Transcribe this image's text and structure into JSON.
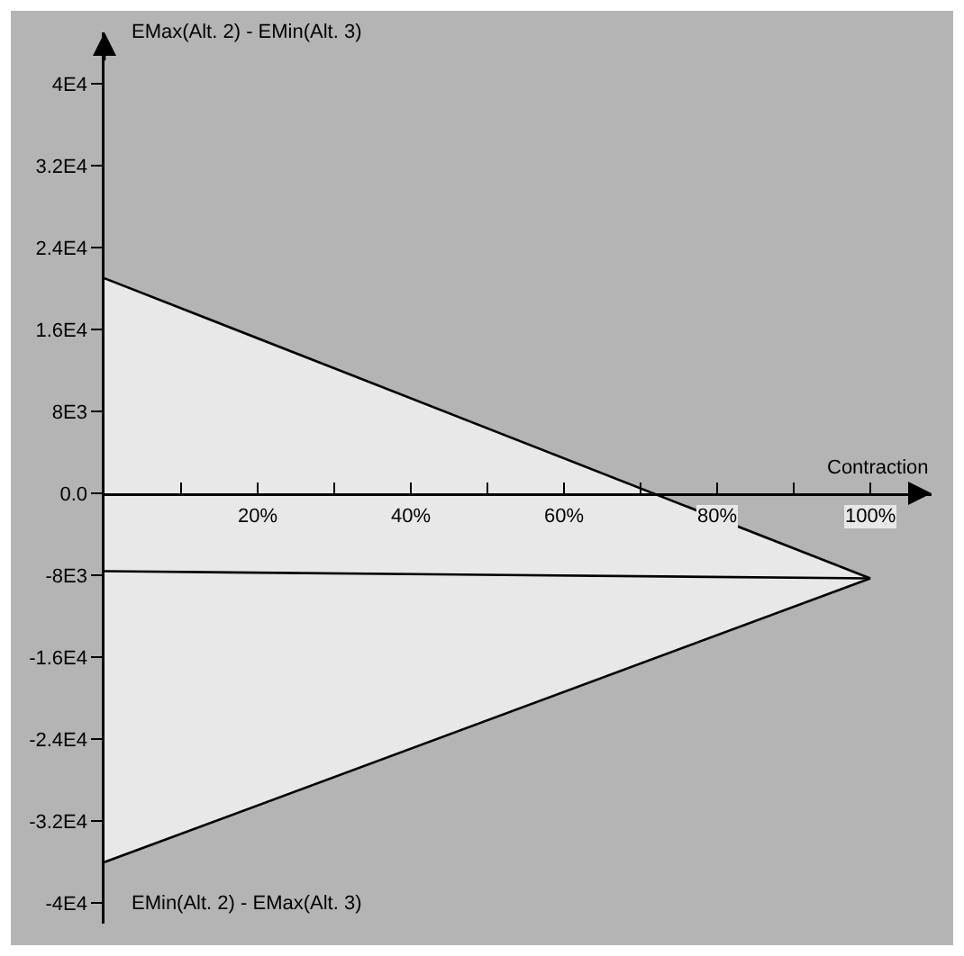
{
  "chart_data": {
    "type": "line",
    "ylabel": "EMax(Alt. 2) - EMin(Alt. 3)",
    "xlabel": "Contraction",
    "annotations": [
      "EMin(Alt. 2) - EMax(Alt. 3)"
    ],
    "x": [
      0,
      100
    ],
    "series": [
      {
        "color": "#000000",
        "values": [
          21000,
          -8300
        ]
      },
      {
        "color": "#000000",
        "values": [
          -7600,
          -8300
        ],
        "lower": [
          -36000,
          -8300
        ],
        "upper": [
          21000,
          -8300
        ]
      },
      {
        "color": "#000000",
        "values": [
          -36000,
          -8300
        ]
      }
    ],
    "xlim": [
      0,
      108
    ],
    "xticks": [
      {
        "value": 10,
        "label": null
      },
      {
        "value": 20,
        "label": "20%"
      },
      {
        "value": 30,
        "label": null
      },
      {
        "value": 40,
        "label": "40%"
      },
      {
        "value": 50,
        "label": null
      },
      {
        "value": 60,
        "label": "60%"
      },
      {
        "value": 70,
        "label": null
      },
      {
        "value": 80,
        "label": "80%"
      },
      {
        "value": 90,
        "label": null
      },
      {
        "value": 100,
        "label": "100%"
      }
    ],
    "ylim": [
      -42000,
      45000
    ],
    "yticks": [
      {
        "value": 40000,
        "label": "4E4"
      },
      {
        "value": 32000,
        "label": "3.2E4"
      },
      {
        "value": 24000,
        "label": "2.4E4"
      },
      {
        "value": 16000,
        "label": "1.6E4"
      },
      {
        "value": 8000,
        "label": "8E3"
      },
      {
        "value": 0,
        "label": "0.0"
      },
      {
        "value": -8000,
        "label": "-8E3"
      },
      {
        "value": -16000,
        "label": "-1.6E4"
      },
      {
        "value": -24000,
        "label": "-2.4E4"
      },
      {
        "value": -32000,
        "label": "-3.2E4"
      },
      {
        "value": -40000,
        "label": "-4E4"
      }
    ],
    "marker": "none",
    "line_style": "solid"
  }
}
